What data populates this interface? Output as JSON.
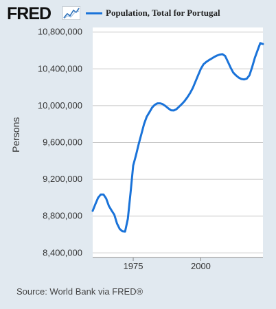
{
  "header": {
    "logo_text": "FRED",
    "logo_icon": "trend-line-icon",
    "legend_label": "Population, Total for Portugal"
  },
  "footer": {
    "source": "Source: World Bank via FRED®"
  },
  "colors": {
    "series": "#1a73d9",
    "grid": "#c8c8c8",
    "background": "#e1e9f0",
    "plot": "#ffffff"
  },
  "chart_data": {
    "type": "line",
    "ylabel": "Persons",
    "xlabel": "",
    "x_ticks": [
      "1975",
      "2000"
    ],
    "x_tick_values": [
      1975,
      2000
    ],
    "y_ticks": [
      "8,400,000",
      "8,800,000",
      "9,200,000",
      "9,600,000",
      "10,000,000",
      "10,400,000",
      "10,800,000"
    ],
    "y_tick_values": [
      8400000,
      8800000,
      9200000,
      9600000,
      10000000,
      10400000,
      10800000
    ],
    "xlim": [
      1960,
      2023
    ],
    "ylim": [
      8350000,
      10850000
    ],
    "grid": true,
    "legend": "top",
    "series": [
      {
        "name": "Population, Total for Portugal",
        "x": [
          1960,
          1961,
          1962,
          1963,
          1964,
          1965,
          1966,
          1967,
          1968,
          1969,
          1970,
          1971,
          1972,
          1973,
          1974,
          1975,
          1976,
          1977,
          1978,
          1979,
          1980,
          1981,
          1982,
          1983,
          1984,
          1985,
          1986,
          1987,
          1988,
          1989,
          1990,
          1991,
          1992,
          1993,
          1994,
          1995,
          1996,
          1997,
          1998,
          1999,
          2000,
          2001,
          2002,
          2003,
          2004,
          2005,
          2006,
          2007,
          2008,
          2009,
          2010,
          2011,
          2012,
          2013,
          2014,
          2015,
          2016,
          2017,
          2018,
          2019,
          2020,
          2021,
          2022,
          2023
        ],
        "y": [
          8857000,
          8930000,
          9000000,
          9035000,
          9035000,
          8990000,
          8910000,
          8860000,
          8815000,
          8720000,
          8660000,
          8635000,
          8632000,
          8770000,
          9050000,
          9350000,
          9460000,
          9580000,
          9690000,
          9800000,
          9880000,
          9930000,
          9980000,
          10010000,
          10025000,
          10025000,
          10015000,
          9995000,
          9970000,
          9950000,
          9948000,
          9962000,
          9990000,
          10018000,
          10050000,
          10090000,
          10135000,
          10190000,
          10260000,
          10330000,
          10400000,
          10450000,
          10475000,
          10495000,
          10512000,
          10530000,
          10545000,
          10555000,
          10560000,
          10540000,
          10480000,
          10415000,
          10360000,
          10330000,
          10305000,
          10290000,
          10285000,
          10293000,
          10330000,
          10420000,
          10520000,
          10600000,
          10680000,
          10670000
        ]
      }
    ]
  }
}
